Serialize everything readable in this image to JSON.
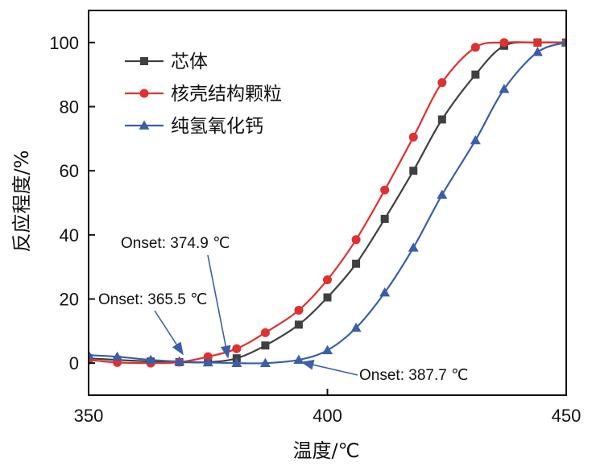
{
  "chart_data": {
    "type": "line",
    "title": "",
    "xlabel": "温度/℃",
    "ylabel": "反应程度/%",
    "xlim": [
      350,
      450
    ],
    "ylim": [
      -10,
      110
    ],
    "xticks": [
      350,
      400,
      450
    ],
    "yticks": [
      0,
      20,
      40,
      60,
      80,
      100
    ],
    "grid": false,
    "legend_position": "top-left",
    "series": [
      {
        "name": "芯体",
        "color": "#404040",
        "marker": "square",
        "points": [
          [
            350,
            1.5
          ],
          [
            356,
            1.0
          ],
          [
            363,
            0.5
          ],
          [
            369,
            0.3
          ],
          [
            375,
            0.3
          ],
          [
            381,
            1.5
          ],
          [
            387,
            5.5
          ],
          [
            394,
            12
          ],
          [
            400,
            20.5
          ],
          [
            406,
            31
          ],
          [
            412,
            45
          ],
          [
            418,
            60
          ],
          [
            424,
            76
          ],
          [
            431,
            90
          ],
          [
            437,
            99
          ],
          [
            444,
            100
          ],
          [
            450,
            100
          ]
        ]
      },
      {
        "name": "核壳结构颗粒",
        "color": "#e03030",
        "marker": "circle",
        "points": [
          [
            350,
            1.0
          ],
          [
            356,
            0.2
          ],
          [
            363,
            0.0
          ],
          [
            369,
            0.3
          ],
          [
            375,
            2.0
          ],
          [
            381,
            4.5
          ],
          [
            387,
            9.5
          ],
          [
            394,
            16.5
          ],
          [
            400,
            26
          ],
          [
            406,
            38.5
          ],
          [
            412,
            54
          ],
          [
            418,
            70.5
          ],
          [
            424,
            87.5
          ],
          [
            431,
            98.5
          ],
          [
            437,
            100
          ],
          [
            444,
            100
          ],
          [
            450,
            100
          ]
        ]
      },
      {
        "name": "纯氢氧化钙",
        "color": "#3a5fa8",
        "marker": "triangle",
        "points": [
          [
            350,
            2.5
          ],
          [
            356,
            2.0
          ],
          [
            363,
            1.0
          ],
          [
            369,
            0.5
          ],
          [
            375,
            0.2
          ],
          [
            381,
            0.0
          ],
          [
            387,
            0.0
          ],
          [
            394,
            1.0
          ],
          [
            400,
            4.0
          ],
          [
            406,
            11
          ],
          [
            412,
            22
          ],
          [
            418,
            36
          ],
          [
            424,
            52.5
          ],
          [
            431,
            69.5
          ],
          [
            437,
            85.5
          ],
          [
            444,
            97
          ],
          [
            450,
            100
          ]
        ]
      }
    ],
    "annotations": [
      {
        "text": "Onset: 374.9 ℃",
        "x": 374.9,
        "y": 0.5
      },
      {
        "text": "Onset: 365.5 ℃",
        "x": 365.5,
        "y": 1.5
      },
      {
        "text": "Onset: 387.7 ℃",
        "x": 387.7,
        "y": 0.2
      }
    ]
  }
}
